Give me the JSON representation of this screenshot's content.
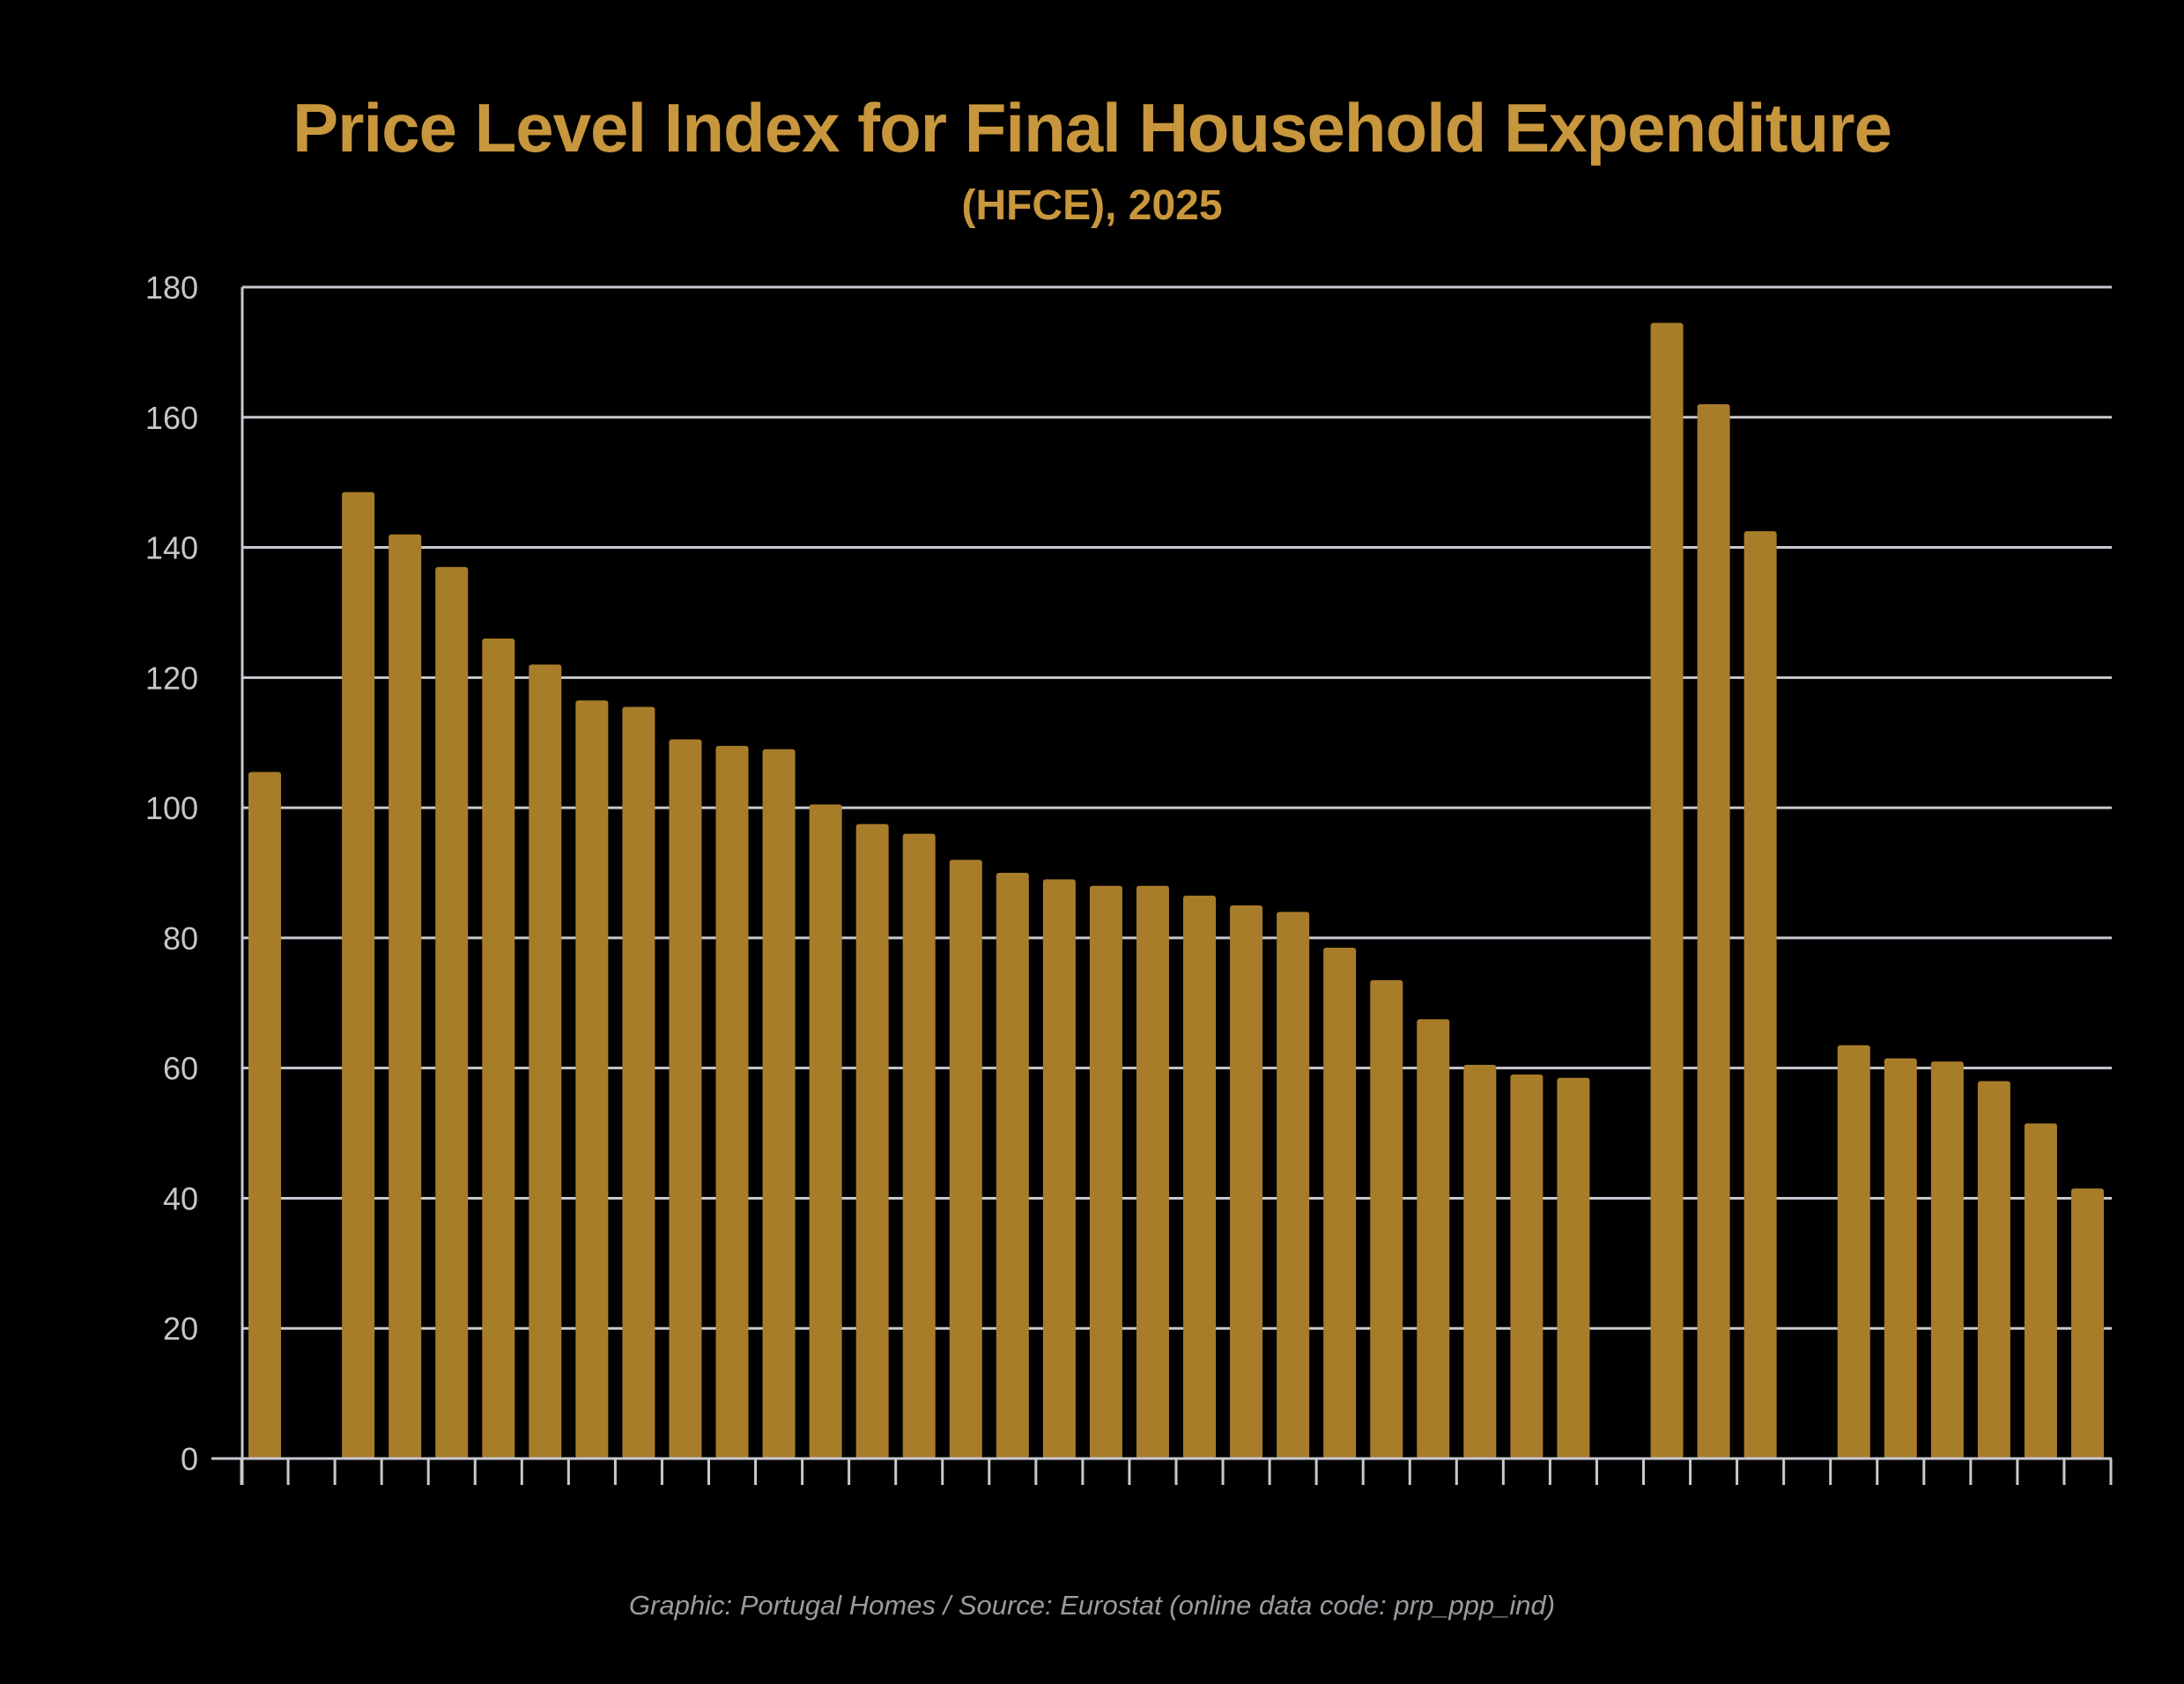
{
  "chart_data": {
    "type": "bar",
    "title": "Price Level Index for Final Household Expenditure",
    "subtitle": "(HFCE), 2025",
    "xlabel": "",
    "ylabel": "",
    "ylim": [
      0,
      180
    ],
    "yticks": [
      0,
      20,
      40,
      60,
      80,
      100,
      120,
      140,
      160,
      180
    ],
    "grid": true,
    "bar_color": "#a87d2a",
    "grid_color": "#c8c8d0",
    "values": [
      105.5,
      null,
      148.5,
      142,
      137,
      126,
      122,
      116.5,
      115.5,
      110.5,
      109.5,
      109,
      100.5,
      97.5,
      96,
      92,
      90,
      89,
      88,
      88,
      86.5,
      85,
      84,
      78.5,
      73.5,
      67.5,
      60.5,
      59,
      58.5,
      null,
      174.5,
      162,
      142.5,
      null,
      63.5,
      61.5,
      61,
      58,
      51.5,
      41.5
    ]
  },
  "caption": "Graphic: Portugal Homes / Source: Eurostat (online data code: prp_ppp_ind)",
  "colors": {
    "background": "#000000",
    "title": "#c8963c",
    "caption": "#9a9aa0"
  }
}
